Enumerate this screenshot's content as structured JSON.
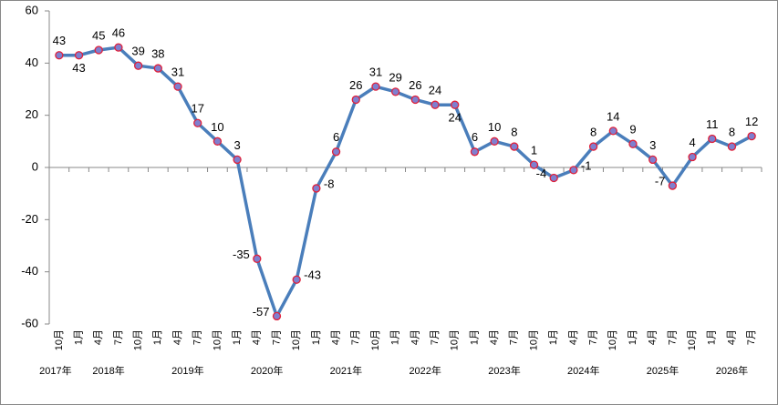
{
  "chart_data": {
    "type": "line",
    "categories": [
      "10月",
      "1月",
      "4月",
      "7月",
      "10月",
      "1月",
      "4月",
      "7月",
      "10月",
      "1月",
      "4月",
      "7月",
      "10月",
      "1月",
      "4月",
      "7月",
      "10月",
      "1月",
      "4月",
      "7月",
      "10月",
      "1月",
      "4月",
      "7月",
      "10月",
      "1月",
      "4月",
      "7月",
      "10月",
      "1月",
      "4月",
      "7月",
      "10月",
      "1月",
      "4月",
      "7月"
    ],
    "year_labels": [
      "2017年",
      "2018年",
      "2019年",
      "2020年",
      "2021年",
      "2022年",
      "2023年",
      "2024年",
      "2025年",
      "2026年"
    ],
    "series": [
      {
        "color": "#4a7ebb",
        "values": [
          43,
          43,
          45,
          46,
          39,
          38,
          31,
          17,
          10,
          3,
          -35,
          -57,
          -43,
          -8,
          6,
          26,
          31,
          29,
          26,
          24,
          24,
          6,
          10,
          8,
          1,
          -4,
          -1,
          8,
          14,
          9,
          3,
          -7,
          4,
          11,
          8,
          12
        ]
      }
    ],
    "ylim": [
      -60,
      60
    ],
    "yticks": [
      -60,
      -40,
      -20,
      0,
      20,
      40,
      60
    ]
  }
}
